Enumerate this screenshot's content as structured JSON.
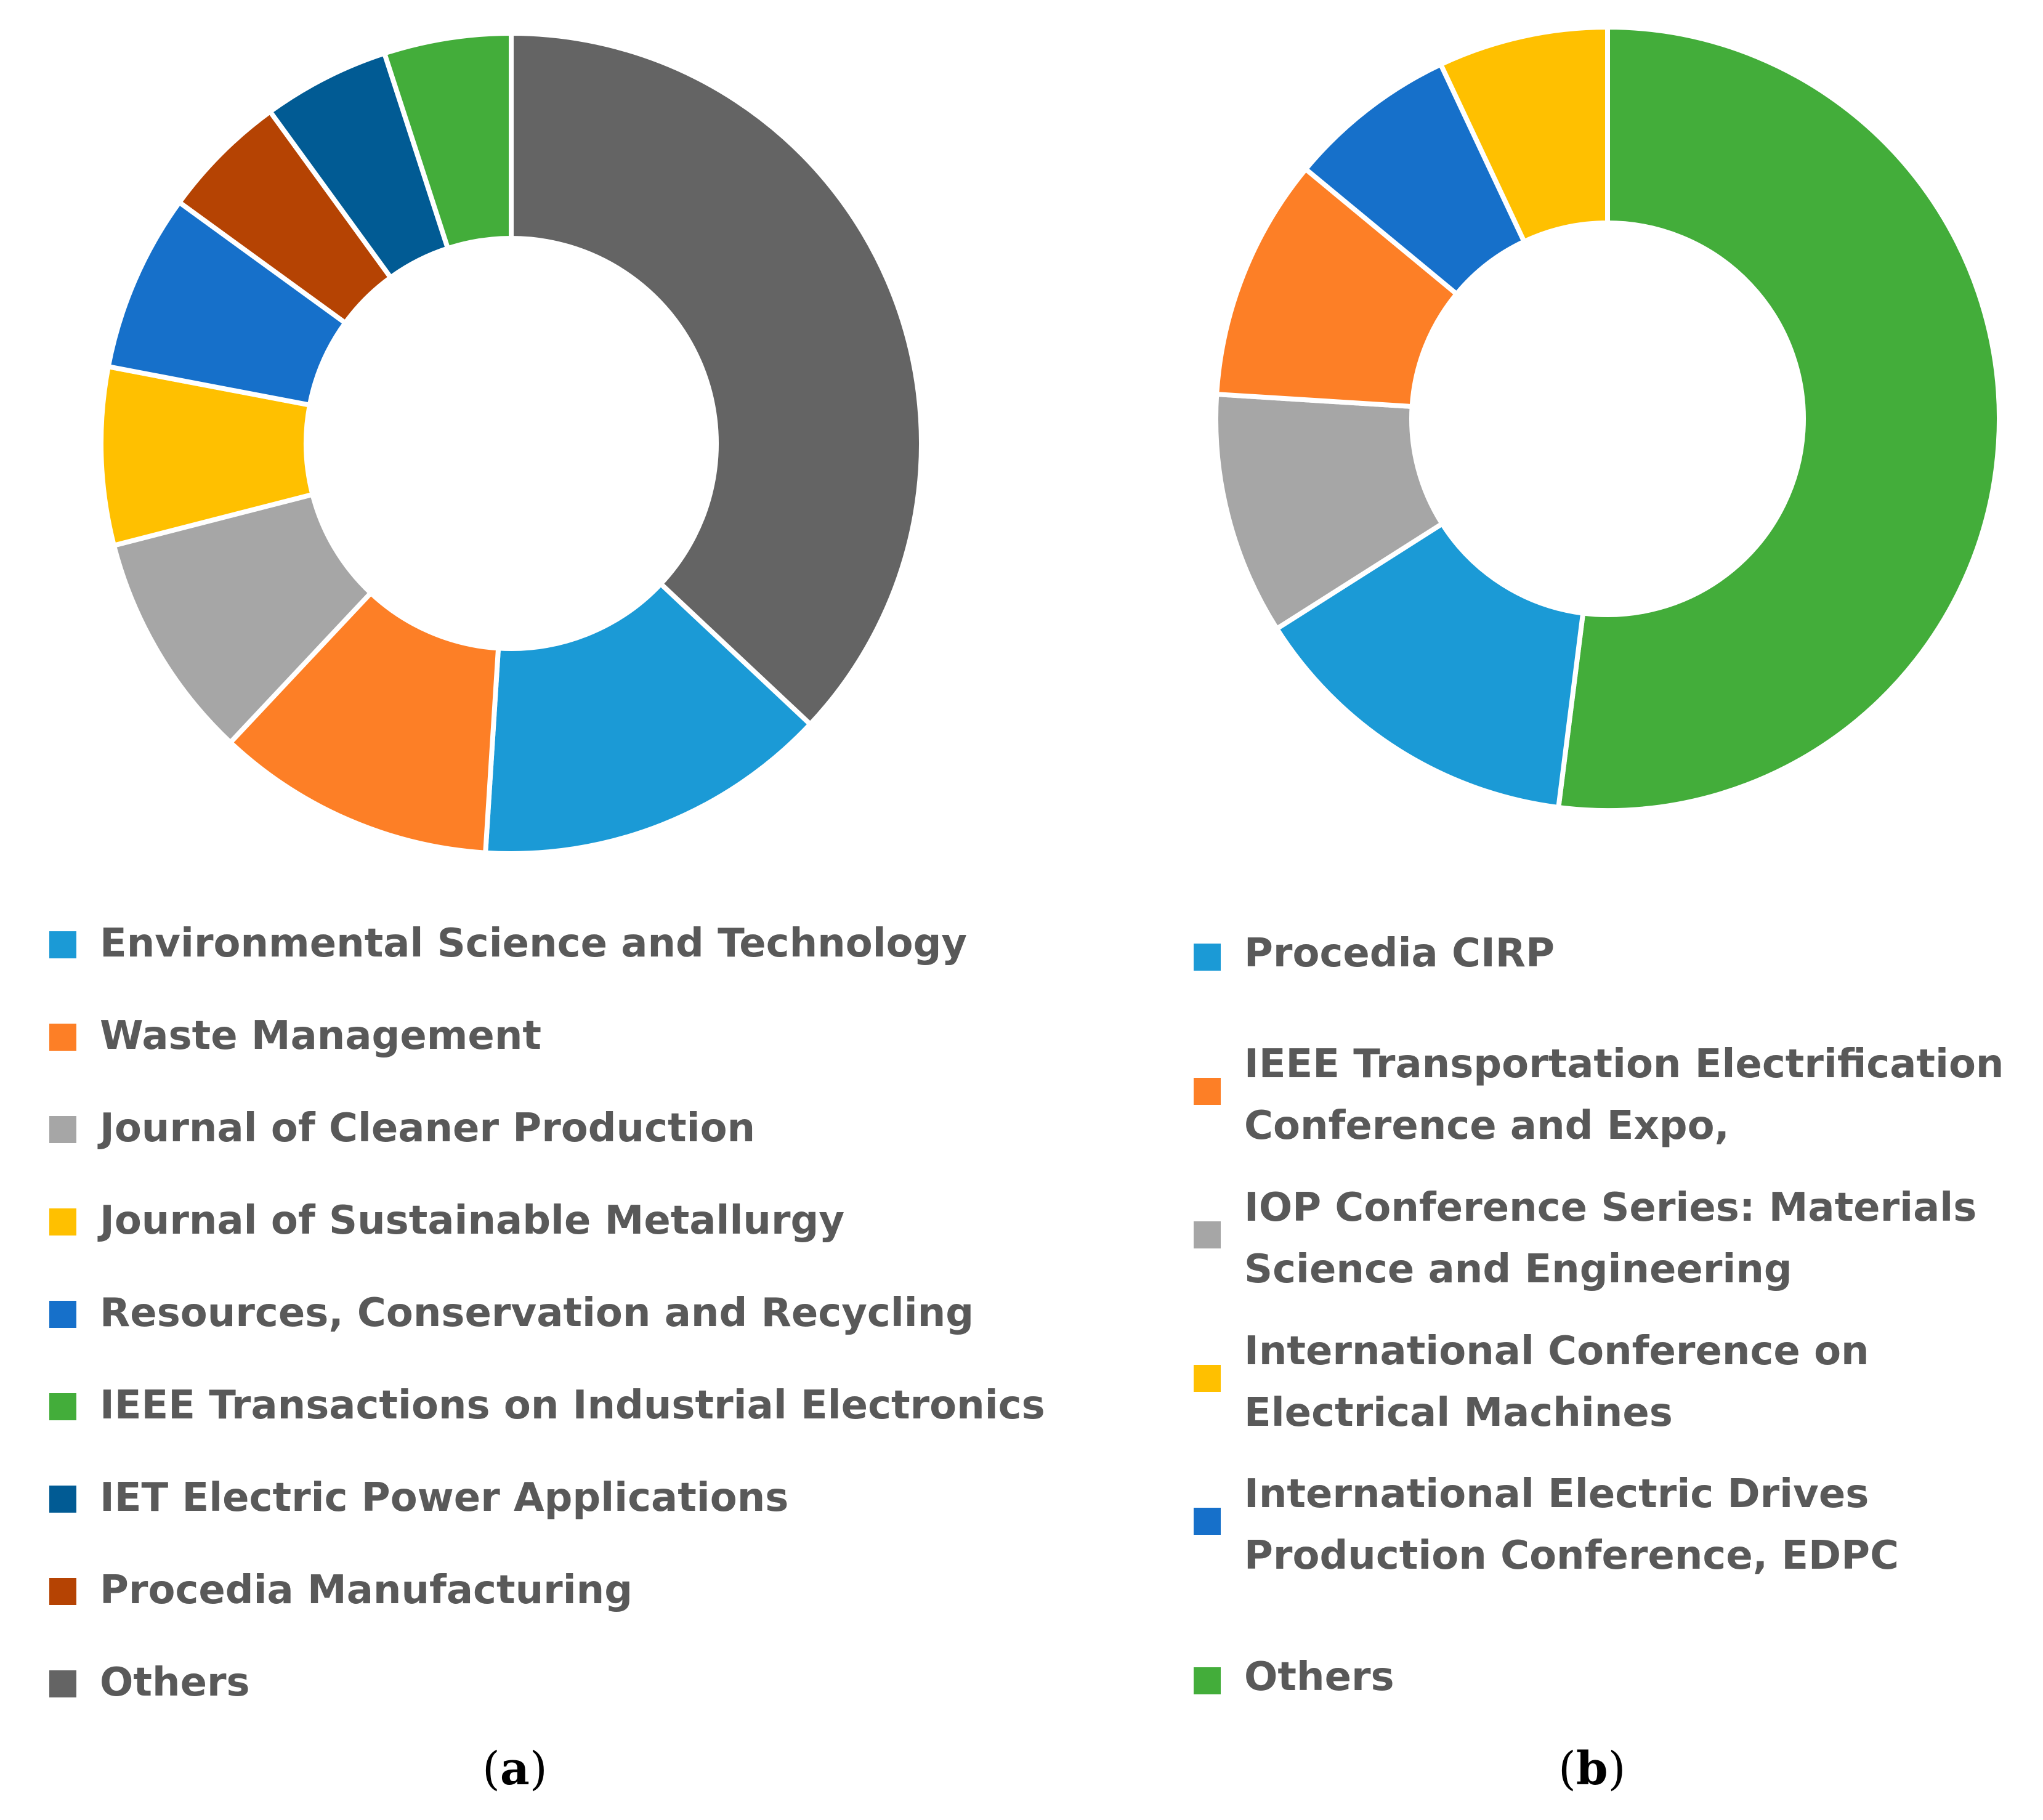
{
  "chart_data": [
    {
      "type": "pie",
      "variant": "donut",
      "panel": "(a)",
      "panel_letter": "a",
      "title": "",
      "slices": [
        {
          "label": "Environmental Science and Technology",
          "value": 14,
          "color": "#1B9AD6"
        },
        {
          "label": "Waste Management",
          "value": 11,
          "color": "#FD7F26"
        },
        {
          "label": "Journal of Cleaner Production",
          "value": 9,
          "color": "#A6A6A6"
        },
        {
          "label": "Journal of Sustainable Metallurgy",
          "value": 7,
          "color": "#FFC000"
        },
        {
          "label": "Resources, Conservation and Recycling",
          "value": 7,
          "color": "#1670CA"
        },
        {
          "label": "IEEE Transactions on Industrial Electronics",
          "value": 5,
          "color": "#43AD3A"
        },
        {
          "label": "IET Electric Power Applications",
          "value": 5,
          "color": "#015B94"
        },
        {
          "label": "Procedia Manufacturing",
          "value": 5,
          "color": "#B54303"
        },
        {
          "label": "Others",
          "value": 37,
          "color": "#646464"
        }
      ],
      "draw_order": [
        8,
        0,
        1,
        2,
        3,
        4,
        7,
        6,
        5
      ],
      "legend_position": "bottom"
    },
    {
      "type": "pie",
      "variant": "donut",
      "panel": "(b)",
      "panel_letter": "b",
      "title": "",
      "slices": [
        {
          "label": "Procedia CIRP",
          "value": 14,
          "color": "#1B9AD6"
        },
        {
          "label": "IEEE Transportation Electrification Conference and Expo,",
          "value": 10,
          "color": "#FD7F26"
        },
        {
          "label": "IOP Conference Series: Materials Science and Engineering",
          "value": 10,
          "color": "#A6A6A6"
        },
        {
          "label": "International Conference on Electrical Machines",
          "value": 7,
          "color": "#FFC000"
        },
        {
          "label": "International Electric Drives Production Conference, EDPC",
          "value": 7,
          "color": "#1670CA"
        },
        {
          "label": "Others",
          "value": 52,
          "color": "#43AD3A"
        }
      ],
      "draw_order": [
        5,
        0,
        2,
        1,
        4,
        3
      ],
      "legend_position": "bottom"
    }
  ]
}
